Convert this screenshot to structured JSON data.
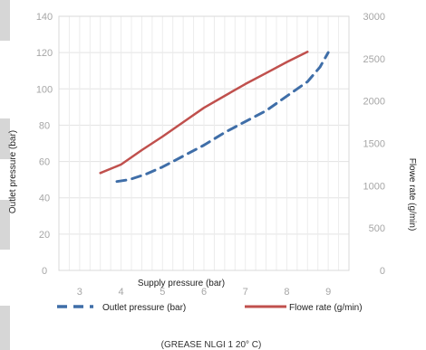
{
  "chart_data": {
    "type": "line",
    "xlabel": "Supply pressure (bar)",
    "ylabel_left": "Outlet pressure (bar)",
    "ylabel_right": "Flowe rate (g/min)",
    "caption": "(GREASE NLGI 1 20° C)",
    "xlim": [
      2.5,
      9.5
    ],
    "xticks": [
      3,
      4,
      5,
      6,
      7,
      8,
      9
    ],
    "ylim_left": [
      0,
      140
    ],
    "yticks_left": [
      0,
      20,
      40,
      60,
      80,
      100,
      120,
      140
    ],
    "ylim_right": [
      0,
      3000
    ],
    "yticks_right": [
      0,
      500,
      1000,
      1500,
      2000,
      2500,
      3000
    ],
    "grid": true,
    "legend_position": "bottom",
    "series": [
      {
        "name": "Outlet pressure (bar)",
        "axis": "left",
        "color": "#3f6ea8",
        "style": "dashed",
        "points": [
          [
            3.9,
            49
          ],
          [
            4.2,
            50
          ],
          [
            4.6,
            53
          ],
          [
            5.0,
            57
          ],
          [
            5.5,
            63
          ],
          [
            6.0,
            69
          ],
          [
            6.5,
            76
          ],
          [
            7.0,
            82
          ],
          [
            7.5,
            88
          ],
          [
            8.0,
            96
          ],
          [
            8.5,
            104
          ],
          [
            8.8,
            112
          ],
          [
            9.0,
            120
          ]
        ]
      },
      {
        "name": "Flowe rate (g/min)",
        "axis": "right",
        "color": "#c0504d",
        "style": "solid",
        "points": [
          [
            3.5,
            1150
          ],
          [
            4.0,
            1250
          ],
          [
            4.5,
            1420
          ],
          [
            5.0,
            1580
          ],
          [
            5.5,
            1750
          ],
          [
            6.0,
            1920
          ],
          [
            6.5,
            2060
          ],
          [
            7.0,
            2200
          ],
          [
            7.5,
            2330
          ],
          [
            8.0,
            2460
          ],
          [
            8.5,
            2580
          ]
        ]
      }
    ]
  }
}
